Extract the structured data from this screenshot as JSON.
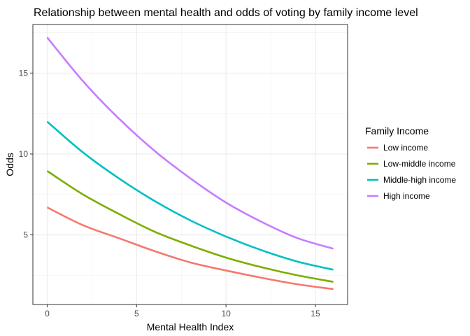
{
  "chart_data": {
    "type": "line",
    "title": "Relationship between mental health and odds of voting by family income level",
    "xlabel": "Mental Health Index",
    "ylabel": "Odds",
    "xlim": [
      -0.8,
      16.8
    ],
    "ylim": [
      0.7,
      18.0
    ],
    "xticks": [
      0,
      5,
      10,
      15
    ],
    "yticks": [
      5,
      10,
      15
    ],
    "grid": true,
    "legend": {
      "title": "Family Income",
      "position": "right"
    },
    "x": [
      0,
      2,
      4,
      6,
      8,
      10,
      12,
      14,
      16
    ],
    "series": [
      {
        "name": "Low income",
        "color": "#F8766D",
        "values": [
          6.7,
          5.6,
          4.8,
          4.0,
          3.3,
          2.8,
          2.35,
          1.95,
          1.65
        ]
      },
      {
        "name": "Low-middle income",
        "color": "#7CAE00",
        "values": [
          8.95,
          7.5,
          6.3,
          5.2,
          4.35,
          3.6,
          3.0,
          2.5,
          2.1
        ]
      },
      {
        "name": "Middle-high income",
        "color": "#00BFC4",
        "values": [
          12.0,
          10.1,
          8.5,
          7.1,
          5.9,
          4.9,
          4.05,
          3.35,
          2.85
        ]
      },
      {
        "name": "High income",
        "color": "#C77CFF",
        "values": [
          17.2,
          14.5,
          12.2,
          10.2,
          8.5,
          7.0,
          5.8,
          4.8,
          4.15
        ]
      }
    ]
  }
}
